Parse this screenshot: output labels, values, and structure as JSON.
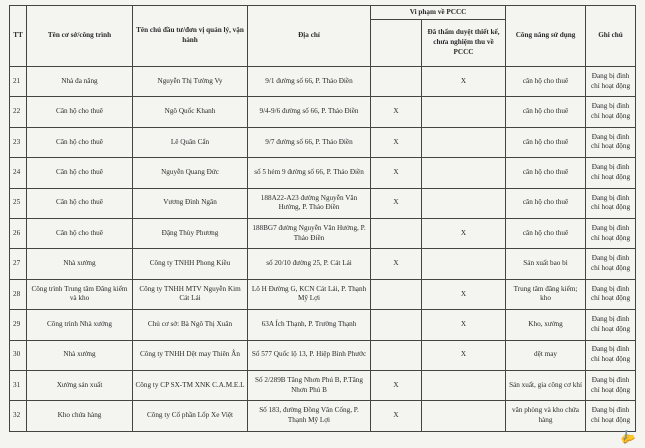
{
  "header": {
    "tt": "TT",
    "name": "Tên cơ sở/công trình",
    "owner": "Tên chủ đầu tư/đơn vị quản lý, vận hành",
    "address": "Địa chỉ",
    "violation_group": "Vi phạm về PCCC",
    "violation_col1": "",
    "violation_col2": "Đã thẩm duyệt thiết kế, chưa nghiệm thu về PCCC",
    "function": "Công năng sử dụng",
    "note": "Ghi chú"
  },
  "rows": [
    {
      "tt": "21",
      "name": "Nhà đa năng",
      "owner": "Nguyễn Thị Tường Vy",
      "address": "9/1 đường số 66, P. Thảo Điền",
      "v1": "",
      "v2": "X",
      "function": "căn hộ cho thuê",
      "note": "Đang bị đình chỉ hoạt động"
    },
    {
      "tt": "22",
      "name": "Căn hộ cho thuê",
      "owner": "Ngô Quốc Khanh",
      "address": "9/4-9/6 đường số 66, P. Thảo Điền",
      "v1": "X",
      "v2": "",
      "function": "căn hộ cho thuê",
      "note": "Đang bị đình chỉ hoạt động"
    },
    {
      "tt": "23",
      "name": "Căn hộ cho thuê",
      "owner": "Lê Quân Cẩn",
      "address": "9/7 đường số 66, P. Thảo Điền",
      "v1": "X",
      "v2": "",
      "function": "căn hộ cho thuê",
      "note": "Đang bị đình chỉ hoạt động"
    },
    {
      "tt": "24",
      "name": "Căn hộ cho thuê",
      "owner": "Nguyễn Quang Đức",
      "address": "số 5 hẻm 9 đường số 66, P. Thảo Điền",
      "v1": "X",
      "v2": "",
      "function": "căn hộ cho thuê",
      "note": "Đang bị đình chỉ hoạt động"
    },
    {
      "tt": "25",
      "name": "Căn hộ cho thuê",
      "owner": "Vương Đình Ngân",
      "address": "188A22-A23 đường Nguyễn Văn Hưởng, P. Thảo Điền",
      "v1": "X",
      "v2": "",
      "function": "căn hộ cho thuê",
      "note": "Đang bị đình chỉ hoạt động"
    },
    {
      "tt": "26",
      "name": "Căn hộ cho thuê",
      "owner": "Đặng Thùy Phương",
      "address": "188BG7 đường Nguyễn Văn Hưởng, P. Thảo Điền",
      "v1": "",
      "v2": "X",
      "function": "căn hộ cho thuê",
      "note": "Đang bị đình chỉ hoạt động"
    },
    {
      "tt": "27",
      "name": "Nhà xưởng",
      "owner": "Công ty TNHH Phong Kiều",
      "address": "số 20/10 đường 25, P. Cát Lái",
      "v1": "X",
      "v2": "",
      "function": "Sản xuất bao bì",
      "note": "Đang bị đình chỉ hoạt động"
    },
    {
      "tt": "28",
      "name": "Công trình Trung tâm Đăng kiểm và kho",
      "owner": "Công ty TNHH MTV Nguyễn Kim Cát Lái",
      "address": "Lô H Đường G, KCN Cát Lái, P. Thạnh Mỹ Lợi",
      "v1": "",
      "v2": "X",
      "function": "Trung tâm đăng kiểm; kho",
      "note": "Đang bị đình chỉ hoạt động"
    },
    {
      "tt": "29",
      "name": "Công trình Nhà xưởng",
      "owner": "Chủ cơ sở: Bà Ngô Thị Xuân",
      "address": "63A Ích Thạnh, P. Trường Thạnh",
      "v1": "",
      "v2": "X",
      "function": "Kho, xưởng",
      "note": "Đang bị đình chỉ hoạt động"
    },
    {
      "tt": "30",
      "name": "Nhà xưởng",
      "owner": "Công ty TNHH Dệt may Thiên Ân",
      "address": "Số 577 Quốc lộ 13, P. Hiệp Bình Phước",
      "v1": "",
      "v2": "X",
      "function": "dệt may",
      "note": "Đang bị đình chỉ hoạt động"
    },
    {
      "tt": "31",
      "name": "Xưởng sản xuất",
      "owner": "Công ty CP SX-TM XNK C.A.M.E.L",
      "address": "Số 2/289B Tăng Nhơn Phú B, P.Tăng Nhơn Phú B",
      "v1": "X",
      "v2": "",
      "function": "Sản xuất, gia công cơ khí",
      "note": "Đang bị đình chỉ hoạt động"
    },
    {
      "tt": "32",
      "name": "Kho chứa hàng",
      "owner": "Công ty Cổ phần Lốp Xe Việt",
      "address": "Số 183, đường Đồng Văn Cống, P. Thạnh Mỹ Lợi",
      "v1": "X",
      "v2": "",
      "function": "văn phòng và kho chứa hàng",
      "note": "Đang bị đình chỉ hoạt động"
    }
  ]
}
